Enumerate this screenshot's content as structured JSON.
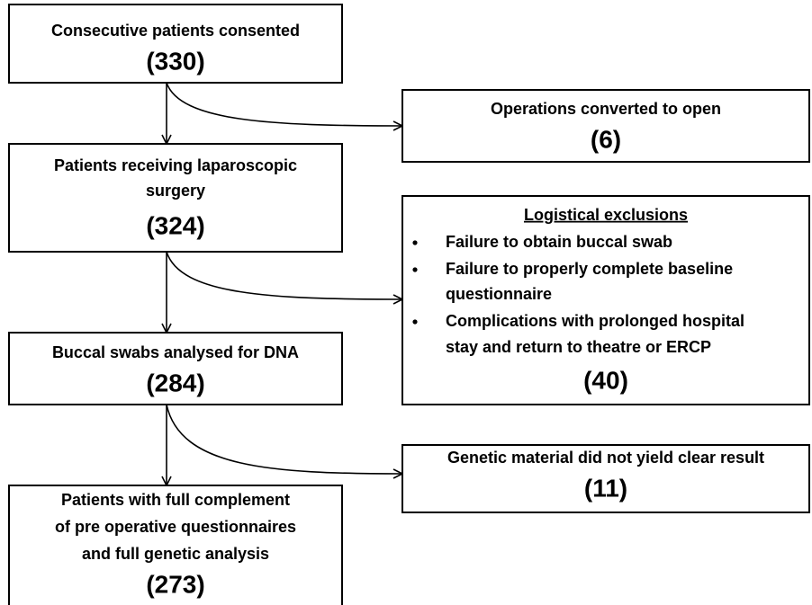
{
  "nodes": [
    {
      "lines": [
        "Consecutive patients consented"
      ],
      "count": "(330)"
    },
    {
      "lines": [
        "Operations converted to open"
      ],
      "count": "(6)"
    },
    {
      "lines": [
        "Patients receiving laparoscopic",
        "surgery"
      ],
      "count": "(324)"
    },
    {
      "heading": "Logistical exclusions",
      "bullets": [
        [
          "Failure to obtain buccal swab"
        ],
        [
          "Failure to properly complete baseline",
          "questionnaire"
        ],
        [
          "Complications with prolonged hospital",
          "stay and return to theatre or ERCP"
        ]
      ],
      "count": "(40)"
    },
    {
      "lines": [
        "Buccal swabs analysed for DNA"
      ],
      "count": "(284)"
    },
    {
      "lines": [
        "Genetic material did not yield clear result"
      ],
      "count": "(11)"
    },
    {
      "lines": [
        "Patients with full complement",
        "of pre operative questionnaires",
        "and full genetic analysis"
      ],
      "count": "(273)"
    }
  ]
}
